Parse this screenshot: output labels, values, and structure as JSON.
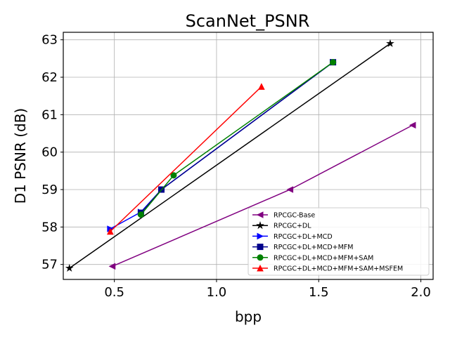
{
  "chart_data": {
    "type": "line",
    "title": "ScanNet_PSNR",
    "xlabel": "bpp",
    "ylabel": "D1 PSNR (dB)",
    "xlim": [
      0.25,
      2.06
    ],
    "ylim": [
      56.6,
      63.2
    ],
    "xticks": [
      0.5,
      1.0,
      1.5,
      2.0
    ],
    "xtick_labels": [
      "0.5",
      "1.0",
      "1.5",
      "2.0"
    ],
    "yticks": [
      57,
      58,
      59,
      60,
      61,
      62,
      63
    ],
    "ytick_labels": [
      "57",
      "58",
      "59",
      "60",
      "61",
      "62",
      "63"
    ],
    "grid": true,
    "legend_position": "lower-right",
    "series": [
      {
        "name": "RPCGC-Base",
        "color": "#800080",
        "marker": "triangle-left",
        "x": [
          0.49,
          1.36,
          1.96
        ],
        "y": [
          56.95,
          59.0,
          60.72
        ]
      },
      {
        "name": "RPCGC+DL",
        "color": "#000000",
        "marker": "star",
        "x": [
          0.28,
          1.85
        ],
        "y": [
          56.9,
          62.9
        ]
      },
      {
        "name": "RPCGC+DL+MCD",
        "color": "#0000ff",
        "marker": "triangle-right",
        "x": [
          0.48,
          0.63,
          0.73,
          1.57
        ],
        "y": [
          57.95,
          58.4,
          59.0,
          62.4
        ]
      },
      {
        "name": "RPCGC+DL+MCD+MFM",
        "color": "#00008b",
        "marker": "square",
        "x": [
          0.63,
          0.73,
          1.57
        ],
        "y": [
          58.38,
          59.0,
          62.4
        ]
      },
      {
        "name": "RPCGC+DL+MCD+MFM+SAM",
        "color": "#008000",
        "marker": "circle",
        "x": [
          0.63,
          0.79,
          1.57
        ],
        "y": [
          58.33,
          59.38,
          62.4
        ]
      },
      {
        "name": "RPCGC+DL+MCD+MFM+SAM+MSFEM",
        "color": "#ff0000",
        "marker": "triangle-up",
        "x": [
          0.48,
          1.22
        ],
        "y": [
          57.88,
          61.75
        ]
      }
    ]
  }
}
